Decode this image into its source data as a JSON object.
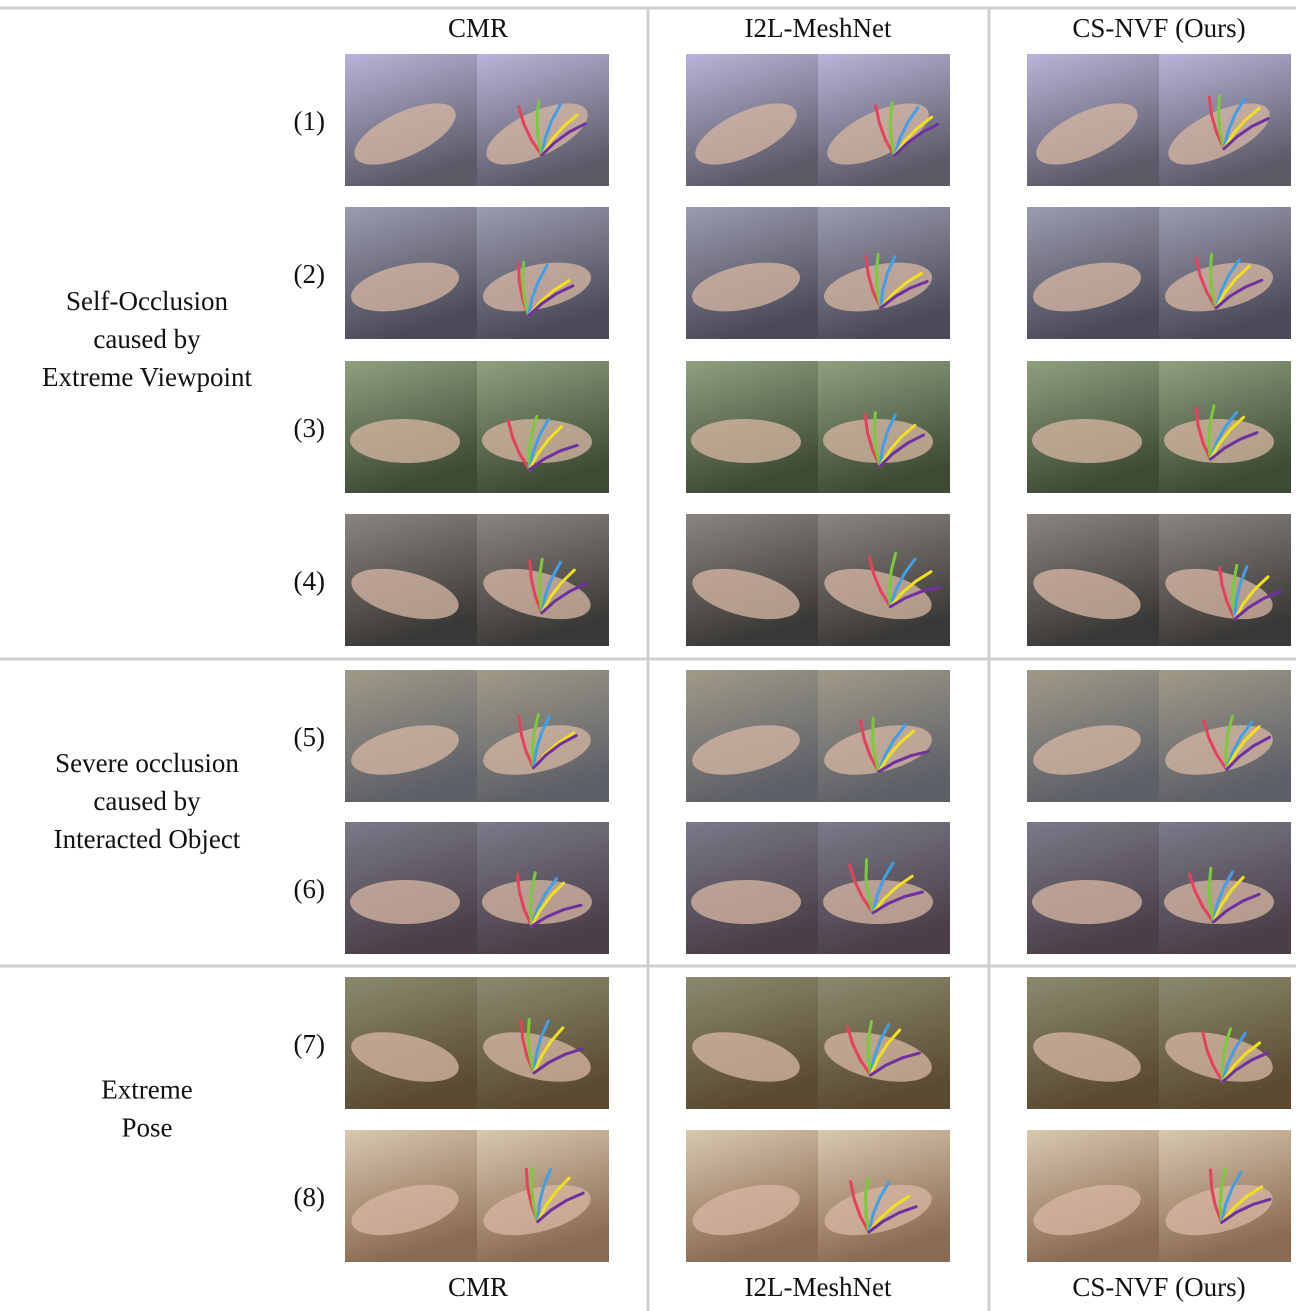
{
  "header": {
    "columns": [
      "CMR",
      "I2L-MeshNet",
      "CS-NVF (Ours)"
    ]
  },
  "groups": [
    {
      "label": [
        "Self-Occlusion",
        "caused by",
        "Extreme Viewpoint"
      ],
      "rows": [
        "(1)",
        "(2)",
        "(3)",
        "(4)"
      ]
    },
    {
      "label": [
        "Severe occlusion",
        "caused by",
        "Interacted Object"
      ],
      "rows": [
        "(5)",
        "(6)"
      ]
    },
    {
      "label": [
        "Extreme",
        "Pose"
      ],
      "rows": [
        "(7)",
        "(8)"
      ]
    }
  ]
}
